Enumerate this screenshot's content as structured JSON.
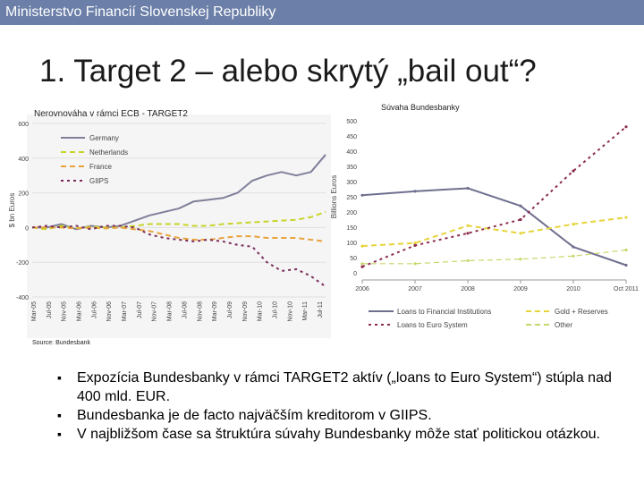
{
  "header": {
    "org": "Ministerstvo Financií Slovenskej Republiky"
  },
  "slide": {
    "title": "1. Target 2 – alebo skrytý „bail out“?"
  },
  "colors": {
    "header_bg": "#6b7fa8",
    "germany": "#7f7f9a",
    "netherlands": "#c8d42a",
    "france": "#e8a33d",
    "giips": "#7a2d5a",
    "bb_loans_fi": "#6f6f8f",
    "bb_gold": "#e6d43a",
    "bb_loans_es": "#8a2d4f",
    "bb_other": "#c9d66a"
  },
  "chart_data": [
    {
      "type": "line",
      "title": "Nerovnováha v rámci ECB - TARGET2",
      "ylabel": "$ bn Euros",
      "ylim": [
        -400,
        600
      ],
      "yticks": [
        "600",
        "400",
        "200",
        "0",
        "-200",
        "-400"
      ],
      "xtick_labels": [
        "Mar-05",
        "Jul-05",
        "Nov-05",
        "Mar-06",
        "Jul-06",
        "Nov-06",
        "Mar-07",
        "Jul-07",
        "Nov-07",
        "Mar-08",
        "Jul-08",
        "Nov-08",
        "Mar-09",
        "Jul-09",
        "Nov-09",
        "Mar-10",
        "Jul-10",
        "Nov-10",
        "Mar-11",
        "Jul-11"
      ],
      "x": [
        0,
        1,
        2,
        3,
        4,
        5,
        6,
        7,
        8,
        9,
        10,
        11,
        12,
        13,
        14,
        15,
        16,
        17,
        18,
        19,
        20
      ],
      "legend": [
        "Germany",
        "Netherlands",
        "France",
        "GIIPS"
      ],
      "series": [
        {
          "name": "Germany",
          "style": "solid",
          "values": [
            0,
            0,
            20,
            -10,
            10,
            0,
            10,
            40,
            70,
            90,
            110,
            150,
            160,
            170,
            200,
            270,
            300,
            320,
            300,
            320,
            420
          ]
        },
        {
          "name": "Netherlands",
          "style": "dashed",
          "values": [
            0,
            -10,
            10,
            -5,
            5,
            0,
            0,
            10,
            20,
            20,
            20,
            10,
            10,
            20,
            25,
            30,
            35,
            40,
            45,
            60,
            90
          ]
        },
        {
          "name": "France",
          "style": "dashed",
          "values": [
            0,
            0,
            0,
            -5,
            0,
            -5,
            0,
            -10,
            -20,
            -40,
            -60,
            -70,
            -70,
            -60,
            -50,
            -50,
            -60,
            -60,
            -60,
            -70,
            -80
          ]
        },
        {
          "name": "GIIPS",
          "style": "dotted",
          "values": [
            0,
            10,
            0,
            10,
            -10,
            10,
            10,
            0,
            -40,
            -60,
            -70,
            -80,
            -70,
            -80,
            -100,
            -110,
            -200,
            -250,
            -240,
            -280,
            -340
          ]
        }
      ],
      "source": "Source: Bundesbank"
    },
    {
      "type": "line",
      "title": "Súvaha Bundesbanky",
      "ylabel": "Billions Euros",
      "ylim": [
        0,
        500
      ],
      "yticks": [
        "500",
        "450",
        "400",
        "350",
        "300",
        "250",
        "200",
        "150",
        "100",
        "50",
        "0"
      ],
      "categories": [
        "2006",
        "2007",
        "2008",
        "2009",
        "2010",
        "Oct 2011"
      ],
      "legend": [
        "Loans to Financial Institutions",
        "Gold + Reserves",
        "Loans to Euro System",
        "Other"
      ],
      "series": [
        {
          "name": "Loans to Financial Institutions",
          "style": "solid",
          "values": [
            255,
            268,
            278,
            220,
            85,
            25
          ]
        },
        {
          "name": "Gold + Reserves",
          "style": "dashed",
          "values": [
            88,
            98,
            155,
            130,
            160,
            182
          ]
        },
        {
          "name": "Loans to Euro System",
          "style": "dotted",
          "values": [
            20,
            90,
            130,
            175,
            335,
            480
          ]
        },
        {
          "name": "Other",
          "style": "dashed",
          "values": [
            30,
            30,
            40,
            45,
            55,
            75
          ]
        }
      ]
    }
  ],
  "bullets": [
    "Expozícia Bundesbanky v rámci TARGET2 aktív („loans to Euro System“) stúpla nad 400 mld. EUR.",
    "Bundesbanka je de facto najväčším kreditorom v GIIPS.",
    "V najbližšom čase sa štruktúra súvahy Bundesbanky môže stať politickou otázkou."
  ]
}
